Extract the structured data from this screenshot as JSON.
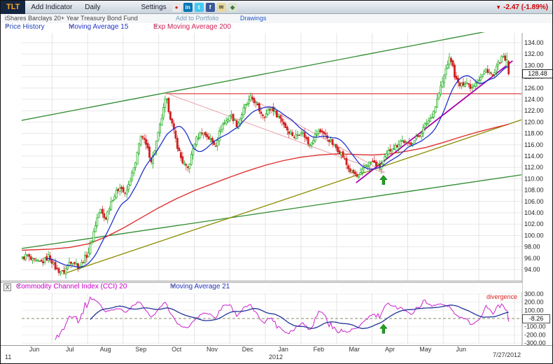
{
  "toolbar": {
    "symbol": "TLT",
    "add_indicator": "Add Indicator",
    "period": "Daily",
    "settings": "Settings",
    "down_arrow_glyph": "▼",
    "change": "-2.47 (-1.89%)",
    "change_color": "#cc0000",
    "icons": [
      {
        "name": "record",
        "glyph": "●",
        "bg": "#e8e8e8",
        "fg": "#cc2222"
      },
      {
        "name": "linkedin",
        "glyph": "in",
        "bg": "#0077b5",
        "fg": "#ffffff"
      },
      {
        "name": "twitter",
        "glyph": "t",
        "bg": "#45c8f1",
        "fg": "#ffffff"
      },
      {
        "name": "facebook",
        "glyph": "f",
        "bg": "#3b5998",
        "fg": "#ffffff"
      },
      {
        "name": "email",
        "glyph": "✉",
        "bg": "#e8d8a0",
        "fg": "#555533"
      },
      {
        "name": "share",
        "glyph": "◆",
        "bg": "#d8e4d0",
        "fg": "#447744"
      }
    ]
  },
  "subheader": {
    "fund_name": "iShares Barclays 20+ Year Treasury Bond Fund",
    "add_to_portfolio": "Add to Portfolio",
    "drawings": "Drawings"
  },
  "legend": {
    "dropdown_glyph": "▾",
    "price_history": "Price History",
    "ma15": "Moving Average 15",
    "ema200": "Exp Moving Average 200"
  },
  "price_axis": {
    "current_price": "128.48"
  },
  "cci_panel": {
    "close_label": "X",
    "cci_label": "Commodity Channel Index (CCI) 20",
    "ma_label": "Moving Average 21",
    "divergence_label": "divergence",
    "current_value": "-8.26"
  },
  "x_axis": {
    "months": [
      "Jun",
      "Jul",
      "Aug",
      "Sep",
      "Oct",
      "Nov",
      "Dec",
      "Jan",
      "Feb",
      "Mar",
      "Apr",
      "May",
      "Jun"
    ],
    "year_left": "11",
    "year_center": "2012",
    "last_date": "7/27/2012"
  },
  "chart_data": {
    "type": "candlestick",
    "title": "TLT iShares Barclays 20+ Year Treasury Bond Fund, Daily",
    "ylim": [
      94,
      134
    ],
    "ytick_step": 2,
    "last_close": 128.48,
    "prev_close": 130.95,
    "colors": {
      "up": "#00a000",
      "down": "#d02020",
      "ma15": "#2233cc",
      "ema200": "#e03030",
      "cci": "#cc22cc",
      "cci_ma": "#223399",
      "arrow": "#1fa51f"
    },
    "close_anchors": [
      [
        0.0,
        95.2
      ],
      [
        0.3,
        96.4
      ],
      [
        0.6,
        95.0
      ],
      [
        0.9,
        96.2
      ],
      [
        1.15,
        94.0
      ],
      [
        1.3,
        93.2
      ],
      [
        1.5,
        95.6
      ],
      [
        1.75,
        94.6
      ],
      [
        2.0,
        96.5
      ],
      [
        2.2,
        101.5
      ],
      [
        2.35,
        104.5
      ],
      [
        2.5,
        103.0
      ],
      [
        2.7,
        106.5
      ],
      [
        2.9,
        108.8
      ],
      [
        3.05,
        107.0
      ],
      [
        3.2,
        110.0
      ],
      [
        3.35,
        112.5
      ],
      [
        3.5,
        118.2
      ],
      [
        3.65,
        115.5
      ],
      [
        3.8,
        113.2
      ],
      [
        4.0,
        118.0
      ],
      [
        4.2,
        124.6
      ],
      [
        4.35,
        120.0
      ],
      [
        4.5,
        116.5
      ],
      [
        4.65,
        113.0
      ],
      [
        4.8,
        111.6
      ],
      [
        5.0,
        116.0
      ],
      [
        5.2,
        118.6
      ],
      [
        5.4,
        117.0
      ],
      [
        5.6,
        116.2
      ],
      [
        5.8,
        119.6
      ],
      [
        6.0,
        121.2
      ],
      [
        6.2,
        119.6
      ],
      [
        6.4,
        122.2
      ],
      [
        6.6,
        124.6
      ],
      [
        6.8,
        122.2
      ],
      [
        7.0,
        121.2
      ],
      [
        7.2,
        122.6
      ],
      [
        7.4,
        120.6
      ],
      [
        7.6,
        119.0
      ],
      [
        7.8,
        117.2
      ],
      [
        8.0,
        118.6
      ],
      [
        8.2,
        116.2
      ],
      [
        8.4,
        117.6
      ],
      [
        8.6,
        118.6
      ],
      [
        8.8,
        116.6
      ],
      [
        9.0,
        115.6
      ],
      [
        9.2,
        113.6
      ],
      [
        9.4,
        111.2
      ],
      [
        9.6,
        110.2
      ],
      [
        9.8,
        112.2
      ],
      [
        10.0,
        113.2
      ],
      [
        10.2,
        111.8
      ],
      [
        10.4,
        114.2
      ],
      [
        10.6,
        115.6
      ],
      [
        10.8,
        116.6
      ],
      [
        11.0,
        116.2
      ],
      [
        11.2,
        116.6
      ],
      [
        11.4,
        118.6
      ],
      [
        11.6,
        120.2
      ],
      [
        11.8,
        123.2
      ],
      [
        12.0,
        127.6
      ],
      [
        12.1,
        130.2
      ],
      [
        12.2,
        131.2
      ],
      [
        12.35,
        127.6
      ],
      [
        12.5,
        126.2
      ],
      [
        12.65,
        127.2
      ],
      [
        12.8,
        126.2
      ],
      [
        13.0,
        127.6
      ],
      [
        13.2,
        129.2
      ],
      [
        13.4,
        128.2
      ],
      [
        13.55,
        130.2
      ],
      [
        13.7,
        131.6
      ],
      [
        13.84,
        128.48
      ]
    ],
    "ema200_anchors": [
      [
        0.15,
        97.4
      ],
      [
        1.0,
        97.6
      ],
      [
        1.5,
        97.9
      ],
      [
        2.0,
        98.5
      ],
      [
        2.5,
        99.7
      ],
      [
        3.0,
        101.3
      ],
      [
        3.5,
        103.1
      ],
      [
        4.0,
        104.9
      ],
      [
        4.5,
        106.5
      ],
      [
        5.0,
        107.9
      ],
      [
        5.5,
        109.1
      ],
      [
        6.0,
        110.3
      ],
      [
        6.5,
        111.4
      ],
      [
        7.0,
        112.4
      ],
      [
        7.5,
        113.2
      ],
      [
        8.0,
        113.8
      ],
      [
        8.5,
        114.2
      ],
      [
        9.0,
        114.4
      ],
      [
        9.5,
        114.3
      ],
      [
        10.0,
        114.2
      ],
      [
        10.5,
        114.4
      ],
      [
        11.0,
        114.9
      ],
      [
        11.5,
        115.5
      ],
      [
        12.0,
        116.4
      ],
      [
        12.5,
        117.4
      ],
      [
        13.0,
        118.3
      ],
      [
        13.5,
        119.1
      ],
      [
        13.84,
        119.6
      ]
    ],
    "overlays": {
      "upper_channel": {
        "color": "#2e8b2e",
        "width": 1.3,
        "points": [
          [
            0.14,
            120.3
          ],
          [
            13.4,
            136.2
          ]
        ]
      },
      "lower_channel": {
        "color": "#2e8b2e",
        "width": 1.3,
        "points": [
          [
            0.14,
            97.7
          ],
          [
            14.2,
            110.7
          ]
        ]
      },
      "olive_trend": {
        "color": "#8b8b00",
        "width": 1.3,
        "points": [
          [
            1.3,
            93.2
          ],
          [
            14.2,
            120.4
          ]
        ]
      },
      "resistance": {
        "color": "#dd4444",
        "width": 1.2,
        "points": [
          [
            4.2,
            125.0
          ],
          [
            14.2,
            125.0
          ]
        ]
      },
      "pink_wedge_a": {
        "color": "#eba6ae",
        "width": 1.1,
        "points": [
          [
            4.25,
            125.0
          ],
          [
            10.35,
            111.0
          ]
        ]
      },
      "pink_wedge_b": {
        "color": "#eba6ae",
        "width": 1.1,
        "points": [
          [
            6.55,
            124.3
          ],
          [
            10.35,
            111.2
          ]
        ]
      },
      "magenta_trend": {
        "color": "#aa00aa",
        "width": 1.8,
        "points": [
          [
            9.55,
            109.3
          ],
          [
            13.95,
            130.8
          ]
        ]
      }
    },
    "buy_arrow_main": {
      "m": 10.32,
      "price": 110.6
    },
    "cci": {
      "period": 20,
      "ma_period": 21,
      "ylim": [
        -300,
        300
      ],
      "ytick_step": 100,
      "buy_arrow": {
        "m": 10.32,
        "value": -70
      }
    }
  }
}
